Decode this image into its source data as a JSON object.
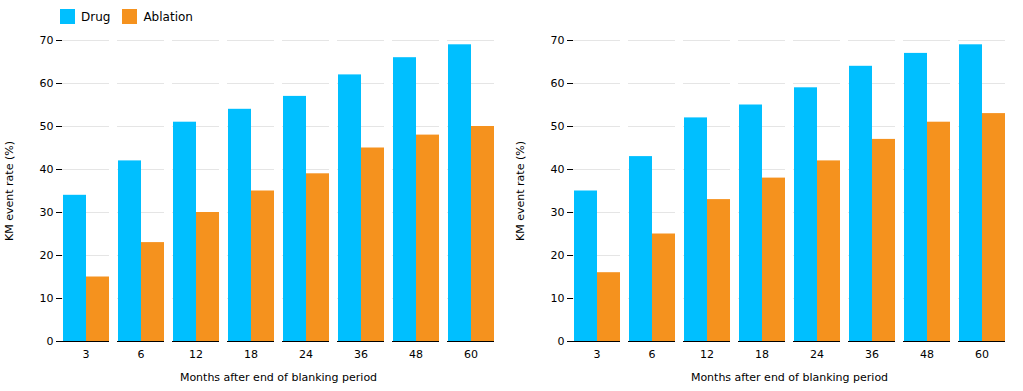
{
  "chart_data": [
    {
      "type": "bar",
      "categories": [
        "3",
        "6",
        "12",
        "18",
        "24",
        "36",
        "48",
        "60"
      ],
      "series": [
        {
          "name": "Drug",
          "color": "#00BFFF",
          "values": [
            34,
            42,
            51,
            54,
            57,
            62,
            66,
            69
          ]
        },
        {
          "name": "Ablation",
          "color": "#F5921E",
          "values": [
            15,
            23,
            30,
            35,
            39,
            45,
            48,
            50
          ]
        }
      ],
      "xlabel": "Months after end of blanking period",
      "ylabel": "KM event rate (%)",
      "ylim": [
        0,
        70
      ],
      "yticks": [
        0,
        10,
        20,
        30,
        40,
        50,
        60,
        70
      ],
      "grid": true,
      "legend": "upper left"
    },
    {
      "type": "bar",
      "categories": [
        "3",
        "6",
        "12",
        "18",
        "24",
        "36",
        "48",
        "60"
      ],
      "series": [
        {
          "name": "Drug",
          "color": "#00BFFF",
          "values": [
            35,
            43,
            52,
            55,
            59,
            64,
            67,
            69
          ]
        },
        {
          "name": "Ablation",
          "color": "#F5921E",
          "values": [
            16,
            25,
            33,
            38,
            42,
            47,
            51,
            53
          ]
        }
      ],
      "xlabel": "Months after end of blanking period",
      "ylabel": "KM event rate (%)",
      "ylim": [
        0,
        70
      ],
      "yticks": [
        0,
        10,
        20,
        30,
        40,
        50,
        60,
        70
      ],
      "grid": true
    }
  ]
}
